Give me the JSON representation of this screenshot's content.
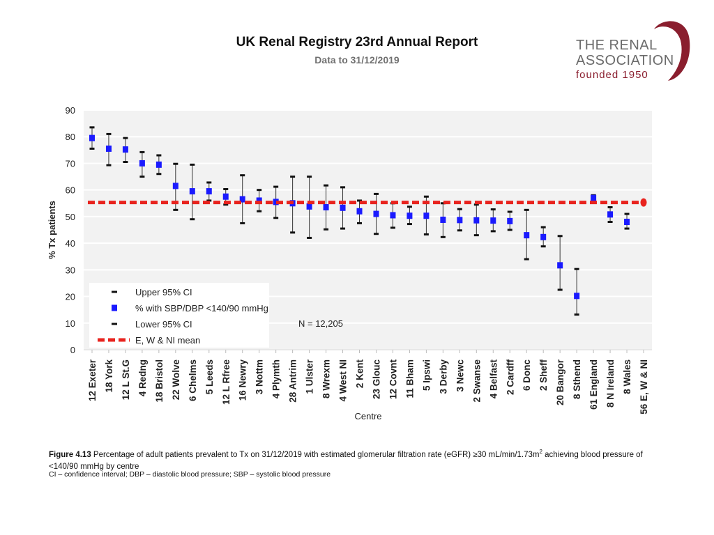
{
  "header": {
    "title": "UK Renal Registry 23rd Annual Report",
    "subtitle": "Data to 31/12/2019"
  },
  "logo": {
    "line1": "THE RENAL",
    "line2": "ASSOCIATION",
    "line3": "founded 1950",
    "brand_color": "#8a1e2e"
  },
  "chart_data": {
    "type": "scatter",
    "title": "",
    "xlabel": "Centre",
    "ylabel": "% Tx patients",
    "ylim": [
      0,
      90
    ],
    "yticks": [
      0,
      10,
      20,
      30,
      40,
      50,
      60,
      70,
      80,
      90
    ],
    "grid": true,
    "annotation": "N = 12,205",
    "mean_value": 55.3,
    "mean_color": "#e8231e",
    "point_color": "#1a1aff",
    "categories": [
      "12 Exeter",
      "18 York",
      "12 L St.G",
      "4 Redng",
      "18 Bristol",
      "22 Wolve",
      "6 Chelms",
      "5 Leeds",
      "12 L Rfree",
      "16 Newry",
      "3 Nottm",
      "4 Plymth",
      "28 Antrim",
      "1 Ulster",
      "8 Wrexm",
      "4 West NI",
      "2 Kent",
      "23 Glouc",
      "12 Covnt",
      "11 Bham",
      "5 Ipswi",
      "3 Derby",
      "3 Newc",
      "2 Swanse",
      "4 Belfast",
      "2 Cardff",
      "6 Donc",
      "2 Sheff",
      "20 Bangor",
      "8 Sthend",
      "61 England",
      "8 N Ireland",
      "8 Wales",
      "56 E, W & NI"
    ],
    "values": [
      79.5,
      75.5,
      75.2,
      70.0,
      69.5,
      61.5,
      59.5,
      59.5,
      57.5,
      56.5,
      56.0,
      55.5,
      55.0,
      53.8,
      53.5,
      53.3,
      52.0,
      51.0,
      50.5,
      50.3,
      50.3,
      48.8,
      48.7,
      48.6,
      48.5,
      48.3,
      43.0,
      42.3,
      31.7,
      20.2,
      57.0,
      50.8,
      48.0,
      55.3
    ],
    "upper_ci": [
      83.5,
      81.0,
      79.5,
      74.2,
      73.0,
      69.8,
      69.5,
      62.8,
      60.3,
      65.5,
      60.0,
      61.2,
      65.0,
      65.0,
      61.7,
      61.0,
      56.0,
      58.5,
      55.0,
      53.7,
      57.5,
      55.0,
      52.8,
      54.5,
      52.7,
      51.8,
      52.5,
      46.0,
      42.7,
      30.3,
      58.0,
      53.5,
      51.0,
      55.6
    ],
    "lower_ci": [
      75.5,
      69.3,
      70.5,
      65.0,
      66.0,
      52.5,
      49.0,
      56.0,
      54.5,
      47.5,
      52.0,
      49.5,
      44.0,
      42.0,
      45.2,
      45.5,
      47.5,
      43.5,
      45.8,
      47.2,
      43.3,
      42.3,
      44.8,
      43.0,
      44.5,
      45.0,
      34.0,
      38.8,
      22.5,
      13.2,
      56.0,
      48.0,
      45.5,
      55.0
    ],
    "legend": [
      {
        "marker": "upper",
        "label": "Upper 95% CI"
      },
      {
        "marker": "point",
        "label": "% with SBP/DBP <140/90 mmHg"
      },
      {
        "marker": "lower",
        "label": "Lower 95% CI"
      },
      {
        "marker": "mean",
        "label": "E, W & NI mean"
      }
    ],
    "legend_position": "bottom-left"
  },
  "caption": {
    "label": "Figure 4.13",
    "text": " Percentage of adult patients prevalent to Tx on 31/12/2019 with estimated glomerular filtration rate (eGFR) ≥30 mL/min/1.73m",
    "sup": "2",
    "text2": " achieving blood pressure of <140/90 mmHg by centre",
    "footnote": "CI – confidence interval; DBP – diastolic blood pressure; SBP – systolic blood pressure"
  }
}
